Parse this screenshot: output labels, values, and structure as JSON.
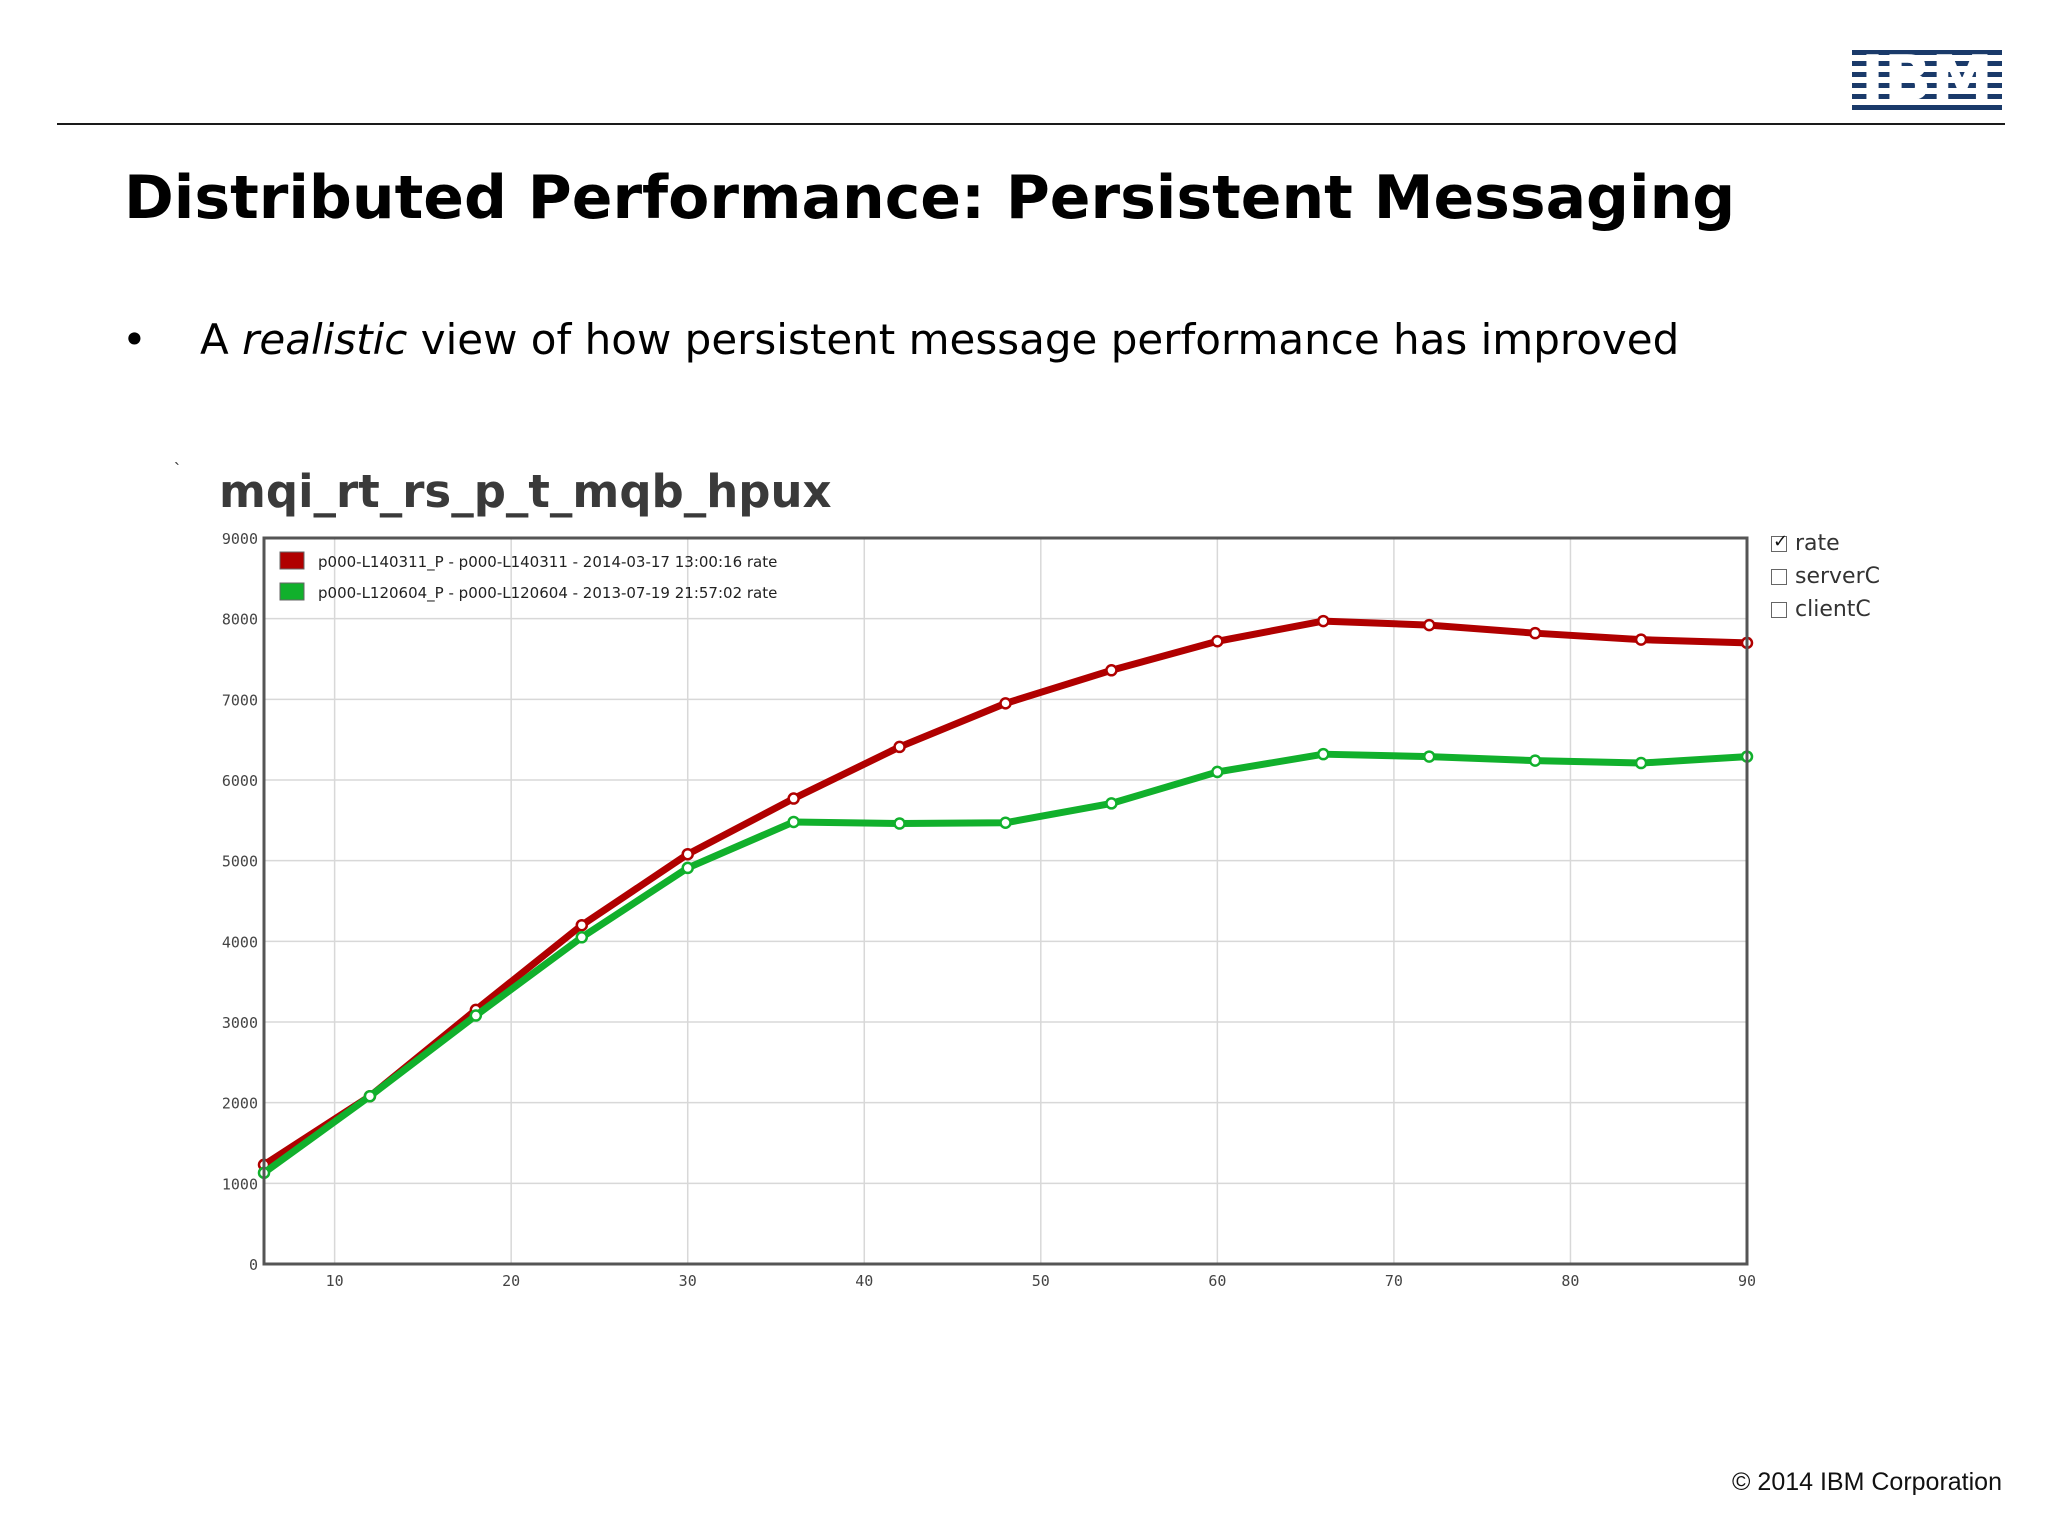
{
  "header": {
    "logo_text": "IBM",
    "title": "Distributed Performance: Persistent Messaging"
  },
  "bullet": {
    "marker": "•",
    "prefix": "A ",
    "emphasis": "realistic",
    "suffix": " view of how persistent message performance has improved"
  },
  "toggles": [
    {
      "label": "rate",
      "checked": true
    },
    {
      "label": "serverC",
      "checked": false
    },
    {
      "label": "clientC",
      "checked": false
    }
  ],
  "footer": {
    "copyright": "© 2014 IBM Corporation"
  },
  "colors": {
    "series_red": "#b00000",
    "series_green": "#11b02c",
    "grid": "#d8d8d8",
    "axis": "#555555"
  },
  "chart_data": {
    "type": "line",
    "title": "mqi_rt_rs_p_t_mqb_hpux",
    "xlabel": "",
    "ylabel": "",
    "xlim": [
      6,
      90
    ],
    "ylim": [
      0,
      9000
    ],
    "x_ticks": [
      10,
      20,
      30,
      40,
      50,
      60,
      70,
      80,
      90
    ],
    "y_ticks": [
      0,
      1000,
      2000,
      3000,
      4000,
      5000,
      6000,
      7000,
      8000,
      9000
    ],
    "grid": true,
    "legend_position": "top-left",
    "x": [
      6,
      12,
      18,
      24,
      30,
      36,
      42,
      48,
      54,
      60,
      66,
      72,
      78,
      84,
      90
    ],
    "series": [
      {
        "name": "p000-L140311_P - p000-L140311 - 2014-03-17 13:00:16  rate",
        "color": "#b00000",
        "values": [
          1230,
          2080,
          3150,
          4200,
          5080,
          5770,
          6410,
          6950,
          7360,
          7720,
          7970,
          7920,
          7820,
          7740,
          7700
        ]
      },
      {
        "name": "p000-L120604_P - p000-L120604 - 2013-07-19 21:57:02  rate",
        "color": "#11b02c",
        "values": [
          1130,
          2080,
          3080,
          4050,
          4910,
          5480,
          5460,
          5470,
          5710,
          6100,
          6320,
          6290,
          6240,
          6210,
          6290
        ]
      }
    ]
  }
}
